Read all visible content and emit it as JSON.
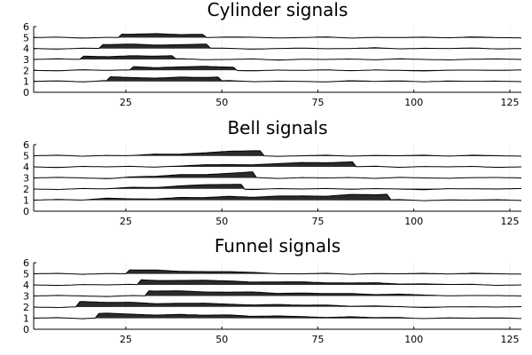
{
  "chart_data": [
    {
      "type": "area",
      "title": "Cylinder signals",
      "xlim": [
        1,
        128
      ],
      "ylim": [
        0,
        6
      ],
      "x_ticks": [
        25,
        50,
        75,
        100,
        125
      ],
      "y_ticks": [
        0,
        1,
        2,
        3,
        4,
        5,
        6
      ],
      "grid": false,
      "series": [
        {
          "offset": 1,
          "base": [
            0,
            0.05,
            -0.05,
            0.08,
            0,
            -0.06,
            0.04,
            0,
            0.07,
            -0.03,
            0.02,
            0,
            -0.05,
            0.06,
            0,
            0.04,
            -0.04,
            0.03,
            0,
            0.02,
            -0.03
          ],
          "event": {
            "shape": "cylinder",
            "start": 21,
            "end": 49,
            "height": 0.35
          }
        },
        {
          "offset": 2,
          "base": [
            0,
            -0.04,
            0.06,
            0,
            0.05,
            -0.05,
            0.02,
            0.07,
            0,
            -0.04,
            0.03,
            0,
            0.05,
            -0.03,
            0.04,
            0,
            -0.05,
            0.02,
            0.03,
            0,
            0.04
          ],
          "event": {
            "shape": "cylinder",
            "start": 27,
            "end": 53,
            "height": 0.3
          }
        },
        {
          "offset": 3,
          "base": [
            0,
            0.06,
            0,
            -0.05,
            0.04,
            0,
            0.07,
            -0.02,
            0,
            0.05,
            -0.06,
            0.02,
            0,
            0.04,
            -0.03,
            0.06,
            0,
            -0.04,
            0.02,
            0.05,
            0
          ],
          "event": {
            "shape": "cylinder",
            "start": 14,
            "end": 37,
            "height": 0.3
          }
        },
        {
          "offset": 4,
          "base": [
            0,
            -0.05,
            0.03,
            0,
            0.06,
            -0.04,
            0,
            0.05,
            0.02,
            -0.06,
            0,
            0.04,
            -0.02,
            0,
            0.07,
            -0.03,
            0.02,
            0,
            0.05,
            -0.04,
            0
          ],
          "event": {
            "shape": "cylinder",
            "start": 19,
            "end": 46,
            "height": 0.35
          }
        },
        {
          "offset": 5,
          "base": [
            0,
            0.04,
            -0.05,
            0.02,
            0,
            0.06,
            -0.03,
            0,
            0.05,
            0.03,
            -0.04,
            0,
            0.06,
            -0.05,
            0.02,
            0,
            0.04,
            -0.02,
            0.06,
            0,
            -0.03
          ],
          "event": {
            "shape": "cylinder",
            "start": 24,
            "end": 45,
            "height": 0.3
          }
        }
      ]
    },
    {
      "type": "area",
      "title": "Bell signals",
      "xlim": [
        1,
        128
      ],
      "ylim": [
        0,
        6
      ],
      "x_ticks": [
        25,
        50,
        75,
        100,
        125
      ],
      "y_ticks": [
        0,
        1,
        2,
        3,
        4,
        5,
        6
      ],
      "grid": false,
      "series": [
        {
          "offset": 1,
          "base": [
            0,
            0.06,
            -0.04,
            0.1,
            0,
            -0.05,
            0.05,
            0,
            0.08,
            -0.04,
            0.03,
            0,
            -0.06,
            0.07,
            0,
            0.05,
            -0.05,
            0.02,
            0,
            0.04,
            -0.03
          ],
          "event": {
            "shape": "bell",
            "start": 6,
            "end": 93,
            "height": 0.5
          }
        },
        {
          "offset": 2,
          "base": [
            0,
            -0.04,
            0.05,
            0,
            0.06,
            -0.05,
            0.03,
            0.06,
            0,
            -0.05,
            0.04,
            0,
            0.05,
            -0.02,
            0.04,
            0,
            -0.06,
            0.03,
            0.02,
            0,
            0.05
          ],
          "event": {
            "shape": "bell",
            "start": 18,
            "end": 55,
            "height": 0.45
          }
        },
        {
          "offset": 3,
          "base": [
            0,
            0.05,
            0,
            -0.06,
            0.04,
            0,
            0.06,
            -0.03,
            0,
            0.05,
            -0.05,
            0.03,
            0,
            0.04,
            -0.04,
            0.05,
            0,
            -0.03,
            0.03,
            0.04,
            0
          ],
          "event": {
            "shape": "bell",
            "start": 22,
            "end": 58,
            "height": 0.5
          }
        },
        {
          "offset": 4,
          "base": [
            0,
            -0.06,
            0.04,
            0,
            0.05,
            -0.04,
            0,
            0.06,
            0.02,
            -0.05,
            0,
            0.05,
            -0.03,
            0,
            0.06,
            -0.04,
            0.03,
            0,
            0.04,
            -0.05,
            0
          ],
          "event": {
            "shape": "bell",
            "start": 30,
            "end": 84,
            "height": 0.45
          }
        },
        {
          "offset": 5,
          "base": [
            0,
            0.05,
            -0.04,
            0.03,
            0,
            0.05,
            -0.04,
            0,
            0.06,
            0.02,
            -0.05,
            0,
            0.05,
            -0.04,
            0.03,
            0,
            0.05,
            -0.03,
            0.05,
            0,
            -0.04
          ],
          "event": {
            "shape": "bell",
            "start": 25,
            "end": 60,
            "height": 0.45
          }
        }
      ]
    },
    {
      "type": "area",
      "title": "Funnel signals",
      "xlim": [
        1,
        128
      ],
      "ylim": [
        0,
        6
      ],
      "x_ticks": [
        25,
        50,
        75,
        100,
        125
      ],
      "y_ticks": [
        0,
        1,
        2,
        3,
        4,
        5,
        6
      ],
      "grid": false,
      "series": [
        {
          "offset": 1,
          "base": [
            0,
            0.05,
            -0.05,
            0.06,
            0,
            -0.05,
            0.04,
            0,
            0.06,
            -0.04,
            0.03,
            0,
            -0.05,
            0.05,
            0,
            0.04,
            -0.04,
            0.03,
            0,
            0.03,
            -0.03
          ],
          "event": {
            "shape": "funnel",
            "start": 18,
            "end": 100,
            "height": 0.4
          }
        },
        {
          "offset": 2,
          "base": [
            0,
            -0.04,
            0.05,
            0,
            0.05,
            -0.05,
            0.02,
            0.06,
            0,
            -0.04,
            0.04,
            0,
            0.05,
            -0.03,
            0.03,
            0,
            -0.05,
            0.02,
            0.03,
            0,
            0.04
          ],
          "event": {
            "shape": "funnel",
            "start": 13,
            "end": 104,
            "height": 0.45
          }
        },
        {
          "offset": 3,
          "base": [
            0,
            0.05,
            0,
            -0.05,
            0.04,
            0,
            0.05,
            -0.02,
            0,
            0.05,
            -0.05,
            0.02,
            0,
            0.04,
            -0.03,
            0.05,
            0,
            -0.04,
            0.02,
            0.04,
            0
          ],
          "event": {
            "shape": "funnel",
            "start": 31,
            "end": 120,
            "height": 0.45
          }
        },
        {
          "offset": 4,
          "base": [
            0,
            -0.05,
            0.03,
            0,
            0.05,
            -0.04,
            0,
            0.05,
            0.02,
            -0.05,
            0,
            0.04,
            -0.02,
            0,
            0.06,
            -0.03,
            0.02,
            0,
            0.05,
            -0.04,
            0
          ],
          "event": {
            "shape": "funnel",
            "start": 29,
            "end": 116,
            "height": 0.45
          }
        },
        {
          "offset": 5,
          "base": [
            0,
            0.04,
            -0.05,
            0.02,
            0,
            0.05,
            -0.03,
            0,
            0.05,
            0.03,
            -0.04,
            0,
            0.05,
            -0.05,
            0.02,
            0,
            0.04,
            -0.02,
            0.05,
            0,
            -0.03
          ],
          "event": {
            "shape": "funnel",
            "start": 26,
            "end": 70,
            "height": 0.35
          }
        }
      ]
    }
  ]
}
